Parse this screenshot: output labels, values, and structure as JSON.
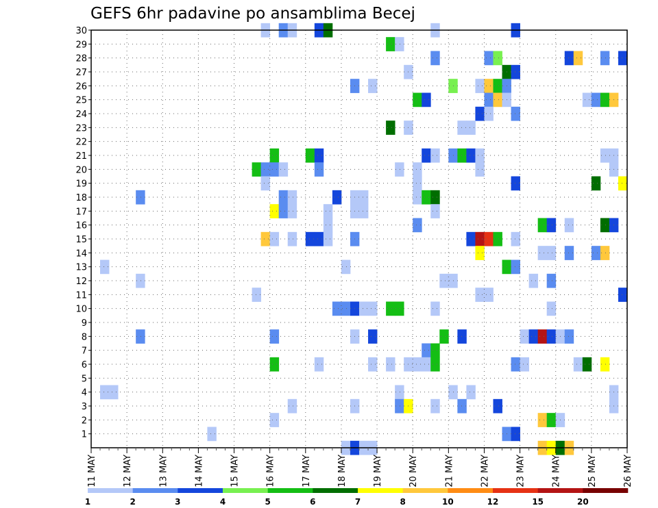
{
  "chart_data": {
    "type": "heatmap",
    "title": "GEFS 6hr padavine po ansamblima Becej",
    "xlabel": "",
    "ylabel": "",
    "x_range": [
      0,
      60
    ],
    "x_unit": "6-hour steps from 11 MAY 00Z",
    "y_range": [
      0,
      30
    ],
    "y_ticks": [
      1,
      2,
      3,
      4,
      5,
      6,
      7,
      8,
      9,
      10,
      11,
      12,
      13,
      14,
      15,
      16,
      17,
      18,
      19,
      20,
      21,
      22,
      23,
      24,
      25,
      26,
      27,
      28,
      29,
      30
    ],
    "x_tick_labels": [
      "11 MAY",
      "12 MAY",
      "13 MAY",
      "14 MAY",
      "15 MAY",
      "16 MAY",
      "17 MAY",
      "18 MAY",
      "19 MAY",
      "20 MAY",
      "21 MAY",
      "22 MAY",
      "23 MAY",
      "24 MAY",
      "25 MAY",
      "26 MAY"
    ],
    "colorbar": {
      "tick_labels": [
        "1",
        "2",
        "3",
        "4",
        "5",
        "6",
        "7",
        "8",
        "10",
        "12",
        "15",
        "20"
      ],
      "colors": [
        "#b4c8f8",
        "#5a8cf0",
        "#1446dc",
        "#78f050",
        "#14be14",
        "#006e00",
        "#ffff00",
        "#ffc83c",
        "#ff8c14",
        "#e63214",
        "#b41414",
        "#780000"
      ]
    },
    "grid": true,
    "cells": [
      [
        19,
        30,
        1
      ],
      [
        21,
        30,
        2
      ],
      [
        22,
        30,
        1
      ],
      [
        25,
        30,
        3
      ],
      [
        26,
        30,
        6
      ],
      [
        38,
        30,
        1
      ],
      [
        47,
        30,
        3
      ],
      [
        33,
        29,
        5
      ],
      [
        34,
        29,
        1
      ],
      [
        38,
        28,
        2
      ],
      [
        44,
        28,
        2
      ],
      [
        45,
        28,
        4
      ],
      [
        53,
        28,
        3
      ],
      [
        54,
        28,
        8
      ],
      [
        57,
        28,
        2
      ],
      [
        59,
        28,
        3
      ],
      [
        46,
        27,
        6
      ],
      [
        47,
        27,
        3
      ],
      [
        35,
        27,
        1
      ],
      [
        29,
        26,
        2
      ],
      [
        31,
        26,
        1
      ],
      [
        40,
        26,
        4
      ],
      [
        43,
        26,
        1
      ],
      [
        44,
        26,
        8
      ],
      [
        45,
        26,
        5
      ],
      [
        46,
        26,
        2
      ],
      [
        36,
        25,
        5
      ],
      [
        37,
        25,
        3
      ],
      [
        44,
        25,
        2
      ],
      [
        45,
        25,
        8
      ],
      [
        46,
        25,
        1
      ],
      [
        55,
        25,
        1
      ],
      [
        56,
        25,
        2
      ],
      [
        57,
        25,
        5
      ],
      [
        58,
        25,
        8
      ],
      [
        43,
        24,
        3
      ],
      [
        44,
        24,
        1
      ],
      [
        47,
        24,
        2
      ],
      [
        33,
        23,
        6
      ],
      [
        35,
        23,
        1
      ],
      [
        41,
        23,
        1
      ],
      [
        42,
        23,
        1
      ],
      [
        20,
        21,
        5
      ],
      [
        24,
        21,
        5
      ],
      [
        25,
        21,
        3
      ],
      [
        37,
        21,
        3
      ],
      [
        38,
        21,
        1
      ],
      [
        40,
        21,
        2
      ],
      [
        41,
        21,
        5
      ],
      [
        42,
        21,
        3
      ],
      [
        43,
        21,
        1
      ],
      [
        57,
        21,
        1
      ],
      [
        58,
        21,
        1
      ],
      [
        18,
        20,
        5
      ],
      [
        19,
        20,
        2
      ],
      [
        20,
        20,
        2
      ],
      [
        21,
        20,
        1
      ],
      [
        25,
        20,
        2
      ],
      [
        34,
        20,
        1
      ],
      [
        36,
        20,
        1
      ],
      [
        43,
        20,
        1
      ],
      [
        58,
        20,
        1
      ],
      [
        19,
        19,
        1
      ],
      [
        36,
        19,
        1
      ],
      [
        47,
        19,
        3
      ],
      [
        56,
        19,
        6
      ],
      [
        59,
        19,
        7
      ],
      [
        5,
        18,
        2
      ],
      [
        21,
        18,
        2
      ],
      [
        22,
        18,
        1
      ],
      [
        27,
        18,
        3
      ],
      [
        29,
        18,
        1
      ],
      [
        30,
        18,
        1
      ],
      [
        36,
        18,
        1
      ],
      [
        37,
        18,
        5
      ],
      [
        38,
        18,
        6
      ],
      [
        20,
        17,
        7
      ],
      [
        21,
        17,
        2
      ],
      [
        22,
        17,
        1
      ],
      [
        26,
        17,
        1
      ],
      [
        29,
        17,
        1
      ],
      [
        30,
        17,
        1
      ],
      [
        38,
        17,
        1
      ],
      [
        26,
        16,
        1
      ],
      [
        36,
        16,
        2
      ],
      [
        50,
        16,
        5
      ],
      [
        51,
        16,
        3
      ],
      [
        53,
        16,
        1
      ],
      [
        57,
        16,
        6
      ],
      [
        58,
        16,
        3
      ],
      [
        19,
        15,
        8
      ],
      [
        20,
        15,
        1
      ],
      [
        22,
        15,
        1
      ],
      [
        24,
        15,
        3
      ],
      [
        25,
        15,
        3
      ],
      [
        26,
        15,
        1
      ],
      [
        29,
        15,
        2
      ],
      [
        42,
        15,
        3
      ],
      [
        43,
        15,
        11
      ],
      [
        44,
        15,
        10
      ],
      [
        45,
        15,
        5
      ],
      [
        47,
        15,
        1
      ],
      [
        43,
        14,
        7
      ],
      [
        50,
        14,
        1
      ],
      [
        51,
        14,
        1
      ],
      [
        53,
        14,
        2
      ],
      [
        56,
        14,
        2
      ],
      [
        57,
        14,
        8
      ],
      [
        1,
        13,
        1
      ],
      [
        28,
        13,
        1
      ],
      [
        46,
        13,
        5
      ],
      [
        47,
        13,
        2
      ],
      [
        5,
        12,
        1
      ],
      [
        39,
        12,
        1
      ],
      [
        40,
        12,
        1
      ],
      [
        49,
        12,
        1
      ],
      [
        51,
        12,
        2
      ],
      [
        18,
        11,
        1
      ],
      [
        43,
        11,
        1
      ],
      [
        44,
        11,
        1
      ],
      [
        59,
        11,
        3
      ],
      [
        27,
        10,
        2
      ],
      [
        28,
        10,
        2
      ],
      [
        29,
        10,
        3
      ],
      [
        30,
        10,
        1
      ],
      [
        31,
        10,
        1
      ],
      [
        33,
        10,
        5
      ],
      [
        34,
        10,
        5
      ],
      [
        38,
        10,
        1
      ],
      [
        51,
        10,
        1
      ],
      [
        5,
        8,
        2
      ],
      [
        20,
        8,
        2
      ],
      [
        29,
        8,
        1
      ],
      [
        31,
        8,
        3
      ],
      [
        39,
        8,
        5
      ],
      [
        41,
        8,
        3
      ],
      [
        48,
        8,
        1
      ],
      [
        49,
        8,
        3
      ],
      [
        50,
        8,
        11
      ],
      [
        51,
        8,
        3
      ],
      [
        52,
        8,
        1
      ],
      [
        53,
        8,
        2
      ],
      [
        37,
        7,
        2
      ],
      [
        38,
        7,
        5
      ],
      [
        20,
        6,
        5
      ],
      [
        25,
        6,
        1
      ],
      [
        31,
        6,
        1
      ],
      [
        33,
        6,
        1
      ],
      [
        35,
        6,
        1
      ],
      [
        36,
        6,
        1
      ],
      [
        37,
        6,
        1
      ],
      [
        38,
        6,
        5
      ],
      [
        47,
        6,
        2
      ],
      [
        48,
        6,
        1
      ],
      [
        54,
        6,
        1
      ],
      [
        55,
        6,
        6
      ],
      [
        57,
        6,
        7
      ],
      [
        1,
        4,
        1
      ],
      [
        2,
        4,
        1
      ],
      [
        34,
        4,
        1
      ],
      [
        40,
        4,
        1
      ],
      [
        42,
        4,
        1
      ],
      [
        58,
        4,
        1
      ],
      [
        22,
        3,
        1
      ],
      [
        29,
        3,
        1
      ],
      [
        34,
        3,
        2
      ],
      [
        35,
        3,
        7
      ],
      [
        38,
        3,
        1
      ],
      [
        41,
        3,
        2
      ],
      [
        45,
        3,
        3
      ],
      [
        58,
        3,
        1
      ],
      [
        20,
        2,
        1
      ],
      [
        50,
        2,
        8
      ],
      [
        51,
        2,
        5
      ],
      [
        52,
        2,
        1
      ],
      [
        13,
        1,
        1
      ],
      [
        46,
        1,
        2
      ],
      [
        47,
        1,
        3
      ],
      [
        28,
        0,
        1
      ],
      [
        29,
        0,
        3
      ],
      [
        30,
        0,
        1
      ],
      [
        31,
        0,
        1
      ],
      [
        50,
        0,
        8
      ],
      [
        51,
        0,
        7
      ],
      [
        52,
        0,
        6
      ],
      [
        53,
        0,
        8
      ]
    ]
  }
}
